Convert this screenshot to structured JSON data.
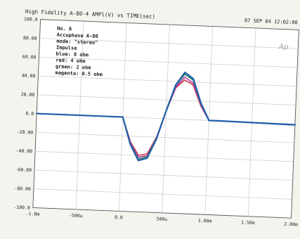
{
  "header": {
    "title": "High Fidelity A-80-4 AMPl(V) vs TIME(sec)",
    "datetime": "07 SEP 04 12:02:00",
    "logo": "Ap"
  },
  "legend": {
    "lines": [
      "No. 6",
      "Accuphase A-80",
      "mode: \"stereo\"",
      "Impulse",
      "blue: 8 ohm",
      "red: 4 ohm",
      "green: 2 ohm",
      "magenta: 0.5 ohm"
    ]
  },
  "chart_data": {
    "type": "line",
    "title": "High Fidelity A-80-4 AMPl(V) vs TIME(sec)",
    "xlabel": "",
    "ylabel": "",
    "xlim": [
      -0.001,
      0.002
    ],
    "ylim": [
      -100,
      100
    ],
    "x_ticks": [
      "-1.0m",
      "-500u",
      "0.0",
      "500u",
      "1.00m",
      "1.50m",
      "2.00m"
    ],
    "y_ticks": [
      "100.0",
      "80.00",
      "60.00",
      "40.00",
      "20.00",
      "0.0",
      "-20.00",
      "-40.00",
      "-60.00",
      "-80.00",
      "-100.0"
    ],
    "grid": true,
    "legend_position": "top-left",
    "series": [
      {
        "name": "blue: 8 ohm",
        "color": "#1f5fa8",
        "x": [
          -0.001,
          0.0,
          0.0001,
          0.0002,
          0.0003,
          0.0004,
          0.0005,
          0.0006,
          0.0007,
          0.0008,
          0.0009,
          0.001,
          0.0011,
          0.00115,
          0.002
        ],
        "y": [
          0,
          0,
          -28.7,
          -45.5,
          -42.7,
          -21.9,
          8.5,
          36.4,
          50,
          43.5,
          18.1,
          0,
          0,
          0,
          -1
        ]
      },
      {
        "name": "red: 4 ohm",
        "color": "#d23a4a",
        "x": [
          -0.001,
          0.0,
          0.0001,
          0.0002,
          0.0003,
          0.0004,
          0.0005,
          0.0006,
          0.0007,
          0.0008,
          0.0009,
          0.001,
          0.0011,
          0.00115,
          0.002
        ],
        "y": [
          0,
          0,
          -26,
          -40,
          -38,
          -20,
          8,
          33,
          42,
          37,
          15,
          0,
          0,
          0,
          -1
        ]
      },
      {
        "name": "green: 2 ohm",
        "color": "#2a8a5a",
        "x": [
          -0.001,
          0.0,
          0.0001,
          0.0002,
          0.0003,
          0.0004,
          0.0005,
          0.0006,
          0.0007,
          0.0008,
          0.0009,
          0.001,
          0.0011,
          0.00115,
          0.002
        ],
        "y": [
          0,
          0,
          -28,
          -44,
          -41,
          -21,
          8,
          36,
          48,
          42,
          17,
          0,
          0,
          0,
          -1
        ]
      },
      {
        "name": "magenta: 0.5 ohm",
        "color": "#b03aa0",
        "x": [
          -0.001,
          0.0,
          0.0001,
          0.0002,
          0.0003,
          0.0004,
          0.0005,
          0.0006,
          0.0007,
          0.0008,
          0.0009,
          0.001,
          0.0011,
          0.00115,
          0.002
        ],
        "y": [
          0,
          0,
          -27,
          -42,
          -40,
          -21,
          8,
          34,
          45,
          39,
          16,
          0,
          0,
          0,
          -1
        ]
      }
    ]
  }
}
